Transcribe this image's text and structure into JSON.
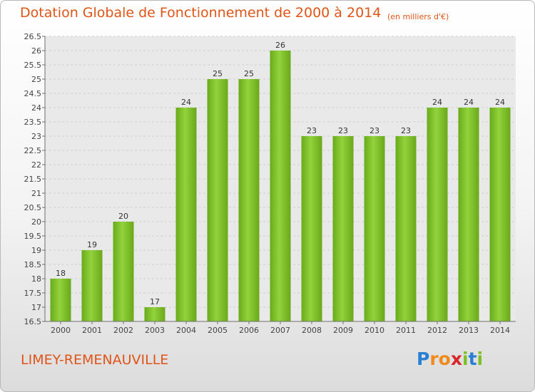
{
  "chart_data": {
    "type": "bar",
    "title": "Dotation Globale de Fonctionnement de 2000 à 2014",
    "subtitle": "(en milliers d'€)",
    "categories": [
      "2000",
      "2001",
      "2002",
      "2003",
      "2004",
      "2005",
      "2006",
      "2007",
      "2008",
      "2009",
      "2010",
      "2011",
      "2012",
      "2013",
      "2014"
    ],
    "values": [
      18,
      19,
      20,
      17,
      24,
      25,
      25,
      26,
      23,
      23,
      23,
      23,
      24,
      24,
      24
    ],
    "ylim": [
      16.5,
      26.5
    ],
    "yticks": [
      "16.5",
      "17",
      "17.5",
      "18",
      "18.5",
      "19",
      "19.5",
      "20",
      "20.5",
      "21",
      "21.5",
      "22",
      "22.5",
      "23",
      "23.5",
      "24",
      "24.5",
      "25",
      "25.5",
      "26",
      "26.5"
    ],
    "xlabel": "",
    "ylabel": "",
    "grid": true,
    "bar_color": "#7cc025"
  },
  "footer": {
    "city": "LIMEY-REMENAUVILLE",
    "logo_letters": [
      {
        "char": "P",
        "color": "#2a7fd4"
      },
      {
        "char": "r",
        "color": "#f08a1c"
      },
      {
        "char": "o",
        "color": "#f08a1c"
      },
      {
        "char": "x",
        "color": "#d9262c"
      },
      {
        "char": "i",
        "color": "#7cc025"
      },
      {
        "char": "t",
        "color": "#2a7fd4"
      },
      {
        "char": "i",
        "color": "#7cc025"
      }
    ]
  }
}
